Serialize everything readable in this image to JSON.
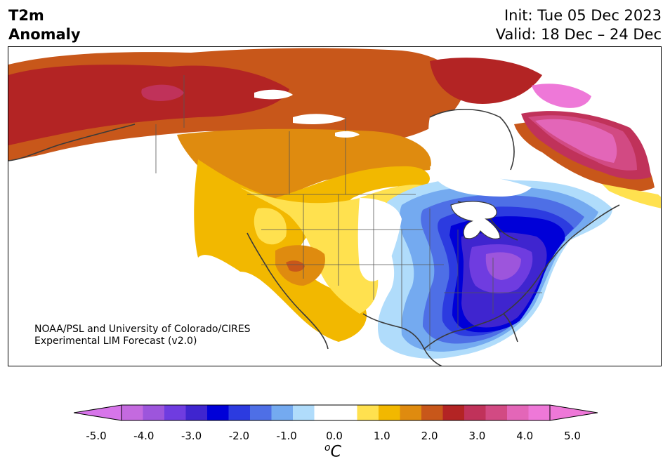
{
  "title": {
    "left_line1": "T2m",
    "left_line2": "Anomaly",
    "right_line1": "Init: Tue 05 Dec 2023",
    "right_line2": "Valid: 18 Dec – 24 Dec"
  },
  "credit": {
    "line1": "NOAA/PSL and University of Colorado/CIRES",
    "line2": "Experimental LIM Forecast (v2.0)"
  },
  "colorbar": {
    "ticks": [
      "-5.0",
      "-4.0",
      "-3.0",
      "-2.0",
      "-1.0",
      "0.0",
      "1.0",
      "2.0",
      "3.0",
      "4.0",
      "5.0"
    ],
    "unit_sup": "o",
    "unit": "C",
    "colors": [
      "#c46adf",
      "#9d55dc",
      "#6f3ce0",
      "#3f25cf",
      "#0000d8",
      "#2c3be0",
      "#4e6fe6",
      "#74aaf0",
      "#b0dcfb",
      "#ffffff",
      "#ffffff",
      "#ffe14f",
      "#f2b800",
      "#df8b0f",
      "#c8571a",
      "#b32424",
      "#c0325a",
      "#d24a83",
      "#e366b8",
      "#ee78d8"
    ],
    "extend_low_color": "#d775ea",
    "extend_high_color": "#ee78d8"
  }
}
